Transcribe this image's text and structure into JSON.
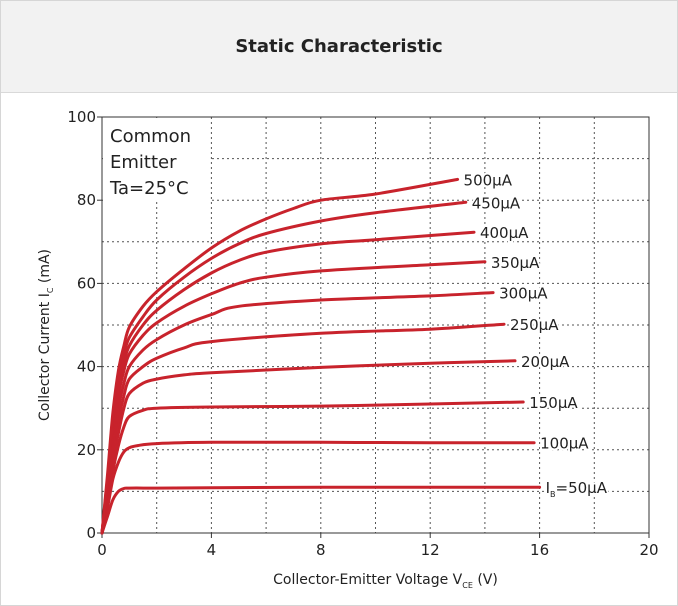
{
  "title": "Static Characteristic",
  "annotation": [
    "Common",
    "Emitter",
    "Ta=25°C"
  ],
  "colors": {
    "curve": "#c8232c",
    "grid": "#555555",
    "axis": "#333333",
    "text": "#222222",
    "header_bg": "#f2f2f2"
  },
  "chart_data": {
    "type": "line",
    "xlabel": "Collector-Emitter Voltage V",
    "xlabel_sub": "CE",
    "xlabel_unit": " (V)",
    "ylabel": "Collector Current I",
    "ylabel_sub": "C",
    "ylabel_unit": " (mA)",
    "xlim": [
      0,
      20
    ],
    "ylim": [
      0,
      100
    ],
    "xticks": [
      0,
      4,
      8,
      12,
      16,
      20
    ],
    "yticks": [
      0,
      20,
      40,
      60,
      80,
      100
    ],
    "grid": true,
    "series": [
      {
        "name": "50μA",
        "label_prefix": "I",
        "label_sub": "B",
        "label_eq": "=",
        "x": [
          0,
          0.2,
          0.4,
          0.6,
          0.8,
          1.0,
          2,
          4,
          8,
          12,
          16
        ],
        "y": [
          0,
          4,
          8,
          10,
          10.7,
          10.8,
          10.8,
          10.9,
          11,
          11,
          11
        ]
      },
      {
        "name": "100μA",
        "x": [
          0,
          0.2,
          0.4,
          0.6,
          0.8,
          1.0,
          1.3,
          2,
          4,
          8,
          12,
          15.8
        ],
        "y": [
          0,
          6,
          13,
          17,
          19.5,
          20.5,
          21,
          21.5,
          21.8,
          21.8,
          21.7,
          21.7
        ]
      },
      {
        "name": "150μA",
        "x": [
          0,
          0.2,
          0.4,
          0.6,
          0.8,
          1.0,
          1.5,
          2,
          4,
          8,
          12,
          15.4
        ],
        "y": [
          0,
          7,
          15,
          21,
          25.5,
          28,
          29.5,
          30,
          30.3,
          30.5,
          31,
          31.5
        ]
      },
      {
        "name": "200μA",
        "x": [
          0,
          0.2,
          0.4,
          0.6,
          0.8,
          1.0,
          1.5,
          2,
          3,
          4,
          8,
          12,
          15.1
        ],
        "y": [
          0,
          8,
          17,
          24,
          30,
          33.5,
          36,
          37,
          38,
          38.5,
          39.8,
          40.8,
          41.4
        ]
      },
      {
        "name": "250μA",
        "x": [
          0,
          0.2,
          0.4,
          0.6,
          0.8,
          1.0,
          1.5,
          2,
          3,
          4,
          8,
          12,
          14.7
        ],
        "y": [
          0,
          9,
          19,
          27,
          33,
          37,
          40,
          42,
          44.5,
          46,
          48,
          49,
          50.2
        ]
      },
      {
        "name": "300μA",
        "x": [
          0,
          0.2,
          0.4,
          0.6,
          0.8,
          1.0,
          1.5,
          2,
          3,
          4,
          5,
          8,
          12,
          14.3
        ],
        "y": [
          0,
          10,
          21,
          30,
          36,
          40,
          44,
          46.5,
          50,
          52.5,
          54.5,
          56,
          57,
          57.8
        ]
      },
      {
        "name": "350μA",
        "x": [
          0,
          0.2,
          0.4,
          0.6,
          0.8,
          1.0,
          1.5,
          2,
          3,
          4,
          5,
          6,
          8,
          12,
          14
        ],
        "y": [
          0,
          11,
          23,
          33,
          39,
          43,
          47.5,
          50.5,
          54.5,
          57.5,
          60,
          61.5,
          63,
          64.5,
          65.2
        ]
      },
      {
        "name": "400μA",
        "x": [
          0,
          0.2,
          0.4,
          0.6,
          0.8,
          1.0,
          1.5,
          2,
          3,
          4,
          5,
          6,
          8,
          10,
          13.6
        ],
        "y": [
          0,
          12,
          25,
          35,
          41,
          45,
          50,
          53.5,
          58.5,
          62.5,
          65.5,
          67.5,
          69.5,
          70.5,
          72.3
        ]
      },
      {
        "name": "450μA",
        "x": [
          0,
          0.2,
          0.4,
          0.6,
          0.8,
          1.0,
          1.5,
          2,
          3,
          4,
          5,
          6,
          8,
          10,
          13.3
        ],
        "y": [
          0,
          13,
          27,
          37,
          43,
          47,
          52,
          56,
          61.5,
          66,
          69.5,
          72,
          75,
          77,
          79.5
        ]
      },
      {
        "name": "500μA",
        "x": [
          0,
          0.2,
          0.4,
          0.6,
          0.8,
          1.0,
          1.5,
          2,
          3,
          4,
          5,
          6,
          7,
          8,
          10,
          13
        ],
        "y": [
          0,
          14,
          29,
          39,
          45,
          49.5,
          54.5,
          58,
          63.5,
          68.5,
          72.5,
          75.5,
          78,
          80,
          81.5,
          85
        ]
      }
    ]
  }
}
